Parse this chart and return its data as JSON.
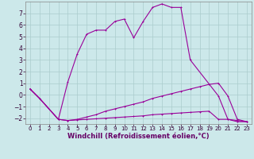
{
  "background_color": "#cce8ea",
  "grid_color": "#aacccc",
  "line_color": "#990099",
  "xlabel": "Windchill (Refroidissement éolien,°C)",
  "xlabel_color": "#660066",
  "xlabel_fontsize": 6.0,
  "xtick_fontsize": 5.0,
  "ytick_fontsize": 5.5,
  "xlim": [
    -0.5,
    23.5
  ],
  "ylim": [
    -2.5,
    8.0
  ],
  "yticks": [
    -2,
    -1,
    0,
    1,
    2,
    3,
    4,
    5,
    6,
    7
  ],
  "xticks": [
    0,
    1,
    2,
    3,
    4,
    5,
    6,
    7,
    8,
    9,
    10,
    11,
    12,
    13,
    14,
    15,
    16,
    17,
    18,
    19,
    20,
    21,
    22,
    23
  ],
  "main_x": [
    0,
    1,
    3,
    4,
    5,
    6,
    7,
    8,
    9,
    10,
    11,
    12,
    13,
    14,
    15,
    16,
    17,
    20,
    21,
    22,
    23
  ],
  "main_y": [
    0.5,
    -0.3,
    -2.1,
    1.1,
    3.5,
    5.2,
    5.55,
    5.55,
    6.3,
    6.5,
    4.9,
    6.3,
    7.5,
    7.8,
    7.5,
    7.5,
    3.0,
    -0.1,
    -2.1,
    -2.3,
    -2.3
  ],
  "mid_x": [
    0,
    1,
    3,
    4,
    5,
    6,
    7,
    8,
    9,
    10,
    11,
    12,
    13,
    14,
    15,
    16,
    17,
    18,
    19,
    20,
    21,
    22,
    23
  ],
  "mid_y": [
    0.5,
    -0.3,
    -2.1,
    -2.2,
    -2.1,
    -1.9,
    -1.7,
    -1.4,
    -1.2,
    -1.0,
    -0.8,
    -0.6,
    -0.3,
    -0.1,
    0.1,
    0.3,
    0.5,
    0.7,
    0.9,
    1.0,
    -0.1,
    -2.1,
    -2.3
  ],
  "bot_x": [
    0,
    1,
    3,
    4,
    5,
    6,
    7,
    8,
    9,
    10,
    11,
    12,
    13,
    14,
    15,
    16,
    17,
    18,
    19,
    20,
    21,
    22,
    23
  ],
  "bot_y": [
    0.5,
    -0.3,
    -2.1,
    -2.2,
    -2.15,
    -2.1,
    -2.05,
    -2.0,
    -1.95,
    -1.9,
    -1.85,
    -1.8,
    -1.7,
    -1.65,
    -1.6,
    -1.55,
    -1.5,
    -1.45,
    -1.4,
    -2.1,
    -2.1,
    -2.2,
    -2.3
  ]
}
